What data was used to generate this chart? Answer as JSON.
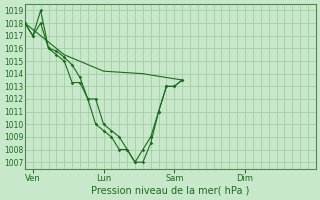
{
  "background_color": "#c8e8cc",
  "grid_color": "#a0c8a0",
  "line_color": "#1a6b1a",
  "title": "Pression niveau de la mer( hPa )",
  "ylim": [
    1006.5,
    1019.5
  ],
  "ytick_vals": [
    1007,
    1008,
    1009,
    1010,
    1011,
    1012,
    1013,
    1014,
    1015,
    1016,
    1017,
    1018,
    1019
  ],
  "xtick_labels": [
    "Ven",
    "Lun",
    "Sam",
    "Dim"
  ],
  "xtick_positions": [
    0.5,
    5.0,
    9.5,
    14.0
  ],
  "xlim": [
    0,
    18.5
  ],
  "num_xgrid": 37,
  "line1_x": [
    0.0,
    0.5,
    1.0,
    1.5,
    2.0,
    2.5,
    3.0,
    3.5,
    4.0,
    4.5,
    5.0,
    5.5,
    6.0,
    6.5,
    7.0,
    7.5,
    8.0,
    8.5,
    9.0,
    9.5,
    10.0
  ],
  "line1_y": [
    1018.0,
    1017.0,
    1018.0,
    1016.0,
    1015.5,
    1015.0,
    1013.3,
    1013.3,
    1012.0,
    1012.0,
    1010.0,
    1009.5,
    1009.0,
    1008.0,
    1007.0,
    1008.0,
    1009.0,
    1011.0,
    1013.0,
    1013.0,
    1013.5
  ],
  "line2_x": [
    0.0,
    0.5,
    1.0,
    1.5,
    2.0,
    2.5,
    3.0,
    3.5,
    4.0,
    4.5,
    5.0,
    5.5,
    6.0,
    6.5,
    7.0,
    7.5,
    8.0,
    8.5,
    9.0,
    9.5,
    10.0
  ],
  "line2_y": [
    1018.0,
    1017.0,
    1019.0,
    1016.0,
    1015.8,
    1015.3,
    1014.7,
    1013.7,
    1012.0,
    1010.0,
    1009.5,
    1009.0,
    1008.0,
    1008.0,
    1007.0,
    1007.0,
    1008.5,
    1011.0,
    1013.0,
    1013.0,
    1013.5
  ],
  "line3_x": [
    0.0,
    2.5,
    5.0,
    7.5,
    10.0
  ],
  "line3_y": [
    1018.0,
    1015.5,
    1014.2,
    1014.0,
    1013.5
  ]
}
